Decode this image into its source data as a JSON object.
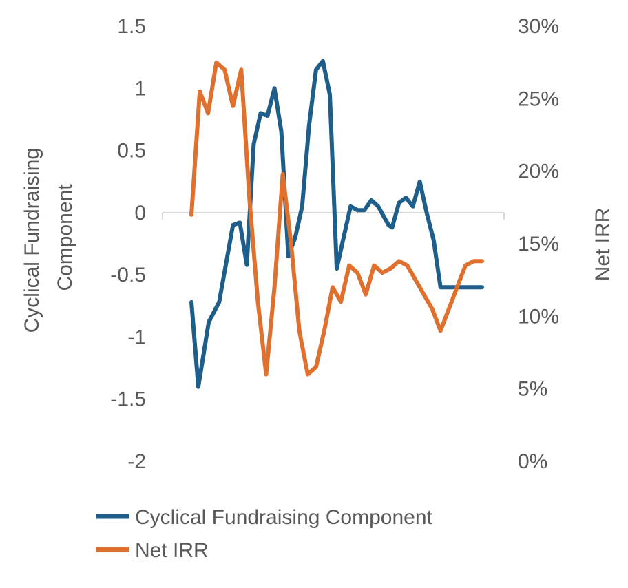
{
  "chart_data": {
    "type": "line",
    "title": "",
    "xlabel": "",
    "ylabel": "Cyclical Fundraising Component",
    "y2label": "Net IRR",
    "ylim": [
      -2,
      1.5
    ],
    "y2lim": [
      0,
      30
    ],
    "yticks": [
      "1.5",
      "1",
      "0.5",
      "0",
      "-0.5",
      "-1",
      "-1.5",
      "-2"
    ],
    "y2ticks": [
      "30%",
      "25%",
      "20%",
      "15%",
      "10%",
      "5%",
      "0%"
    ],
    "grid": false,
    "legend_position": "bottom",
    "colors": {
      "primary": "#1F5E8A",
      "secondary": "#E0702E",
      "zero_line": "#D9D9D9"
    },
    "series": [
      {
        "name": "Cyclical Fundraising Component",
        "axis": "left",
        "x": [
          0,
          1,
          2.5,
          4,
          6,
          7,
          8,
          9,
          10,
          11,
          12,
          13,
          14,
          15,
          16,
          17,
          18,
          19,
          20,
          21,
          22,
          23,
          24,
          25,
          26,
          27,
          28,
          28.5,
          29,
          30,
          31,
          32,
          33,
          34,
          35,
          36,
          37,
          38,
          39,
          40,
          41,
          42
        ],
        "values": [
          -0.72,
          -1.4,
          -0.88,
          -0.72,
          -0.1,
          -0.08,
          -0.42,
          0.55,
          0.8,
          0.78,
          1.0,
          0.65,
          -0.35,
          -0.2,
          0.05,
          0.7,
          1.15,
          1.22,
          0.95,
          -0.45,
          -0.2,
          0.05,
          0.02,
          0.02,
          0.1,
          0.05,
          -0.05,
          -0.1,
          -0.12,
          0.08,
          0.12,
          0.05,
          0.25,
          0.0,
          -0.22,
          -0.6,
          -0.6,
          -0.6,
          -0.6,
          -0.6,
          -0.6,
          -0.6
        ]
      },
      {
        "name": "Net IRR",
        "axis": "right",
        "x": [
          0,
          1,
          2,
          3,
          4,
          5,
          6,
          7,
          8,
          9,
          10,
          11,
          12,
          13,
          14,
          15,
          16,
          17,
          18,
          19,
          20,
          21,
          22,
          23,
          24,
          25,
          26,
          27,
          28,
          29,
          30,
          31,
          32,
          33,
          34,
          35
        ],
        "values": [
          17,
          25.5,
          24,
          27.5,
          27,
          24.5,
          27,
          18,
          11,
          6,
          12,
          19.8,
          15,
          9,
          6,
          6.5,
          9,
          12,
          11,
          13.5,
          13,
          11.5,
          13.5,
          13,
          13.3,
          13.8,
          13.5,
          12.5,
          11.5,
          10.5,
          9,
          10.5,
          12,
          13.5,
          13.8,
          13.8
        ]
      }
    ]
  }
}
